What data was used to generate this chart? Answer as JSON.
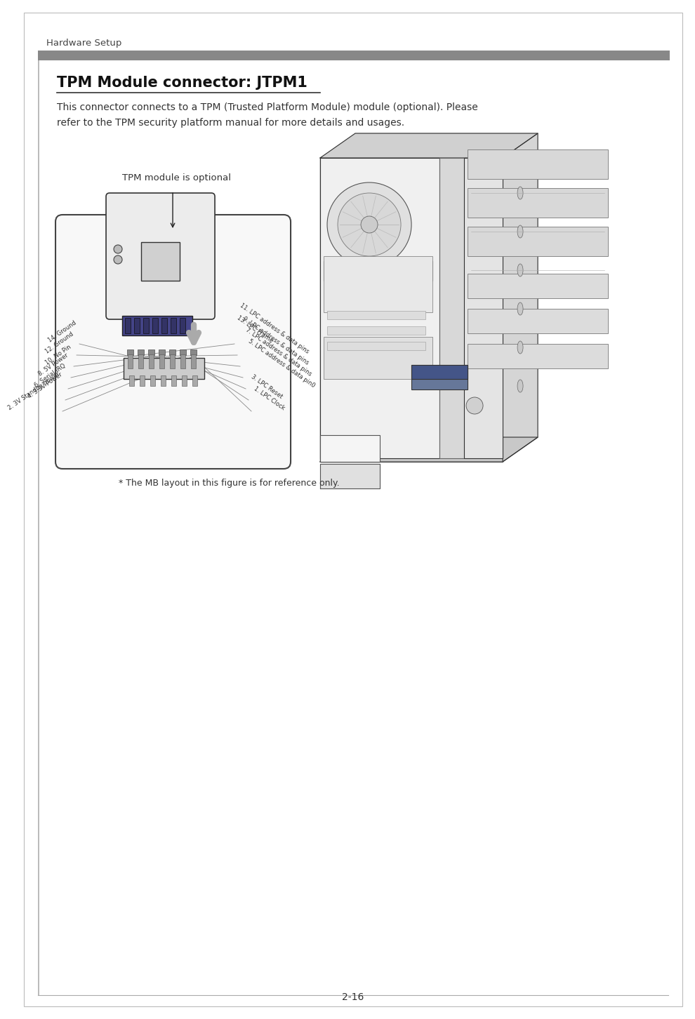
{
  "page_bg": "#ffffff",
  "header_text": "Hardware Setup",
  "header_bar_color": "#888888",
  "section_title": "TPM Module connector: JTPM1",
  "body_text_line1": "This connector connects to a TPM (Trusted Platform Module) module (optional). Please",
  "body_text_line2": "refer to the TPM security platform manual for more details and usages.",
  "label_tpm_optional": "TPM module is optional",
  "pin_labels_left": [
    "14. Ground",
    "12. Ground",
    "10. No Pin",
    "8. 5V Power",
    "6. Serial IRQ",
    "4. 3.3V Power",
    "2. 3V Standby power"
  ],
  "pin_labels_right": [
    "13. LPC Frame",
    "11. LPC address & data pins",
    "9. LPC address & data pins",
    "7. LPC address & data pins",
    "5. LPC address & data pin0",
    "3. LPC Reset",
    "1. LPC Clock"
  ],
  "footer_note": "* The MB layout in this figure is for reference only.",
  "page_number": "2-16",
  "text_color": "#333333",
  "gray_color": "#555555",
  "header_gray": "#666666",
  "line_color": "#333333",
  "bar_color": "#888888"
}
